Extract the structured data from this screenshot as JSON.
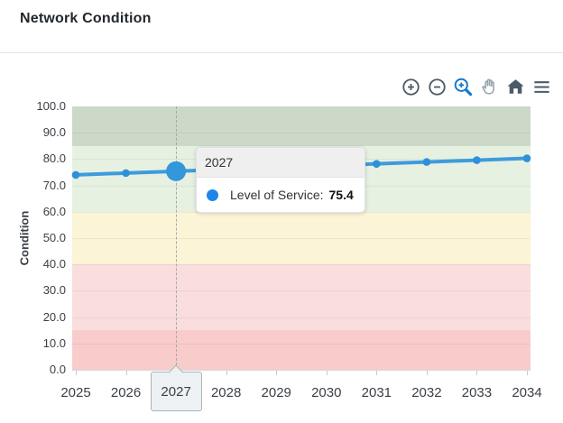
{
  "header": {
    "title": "Network Condition"
  },
  "toolbar": {
    "buttons": [
      "zoom-in",
      "zoom-out",
      "box-zoom",
      "pan",
      "reset-home",
      "menu"
    ],
    "active_button": "box-zoom"
  },
  "chart_data": {
    "type": "line",
    "title": "Network Condition",
    "ylabel": "Condition",
    "xlabel": "",
    "ylim": [
      0,
      100
    ],
    "yticks": [
      "100.0",
      "90.0",
      "80.0",
      "70.0",
      "60.0",
      "50.0",
      "40.0",
      "30.0",
      "20.0",
      "10.0",
      "0.0"
    ],
    "x": [
      "2025",
      "2026",
      "2027",
      "2028",
      "2029",
      "2030",
      "2031",
      "2032",
      "2033",
      "2034"
    ],
    "series": [
      {
        "name": "Level of Service",
        "color": "#3e9bdc",
        "marker_color": "#2f90d9",
        "values": [
          74.0,
          74.7,
          75.4,
          76.1,
          76.8,
          77.5,
          78.2,
          78.9,
          79.6,
          80.3
        ]
      }
    ],
    "selected_point": {
      "x": "2027",
      "value": 75.4
    },
    "grid": true,
    "legend_position": "none",
    "bands": [
      {
        "from": 85,
        "to": 100,
        "color": "#ccd9c8"
      },
      {
        "from": 60,
        "to": 85,
        "color": "#e6f1e2"
      },
      {
        "from": 40,
        "to": 60,
        "color": "#fcf4d6"
      },
      {
        "from": 15,
        "to": 40,
        "color": "#fadddd"
      },
      {
        "from": 0,
        "to": 15,
        "color": "#f8cccb"
      }
    ]
  },
  "tooltip": {
    "title": "2027",
    "series_label": "Level of Service:",
    "value": "75.4"
  },
  "colors": {
    "highlight_marker": "#3496db",
    "tooltip_marker": "#1d86e8",
    "icon": "#4a5b69",
    "icon_active": "#1878cf",
    "icon_muted": "#97a3ab",
    "selected_box_bg": "#edf1f4",
    "selected_box_border": "#a9b5be",
    "axis_text": "#3a3f45"
  }
}
